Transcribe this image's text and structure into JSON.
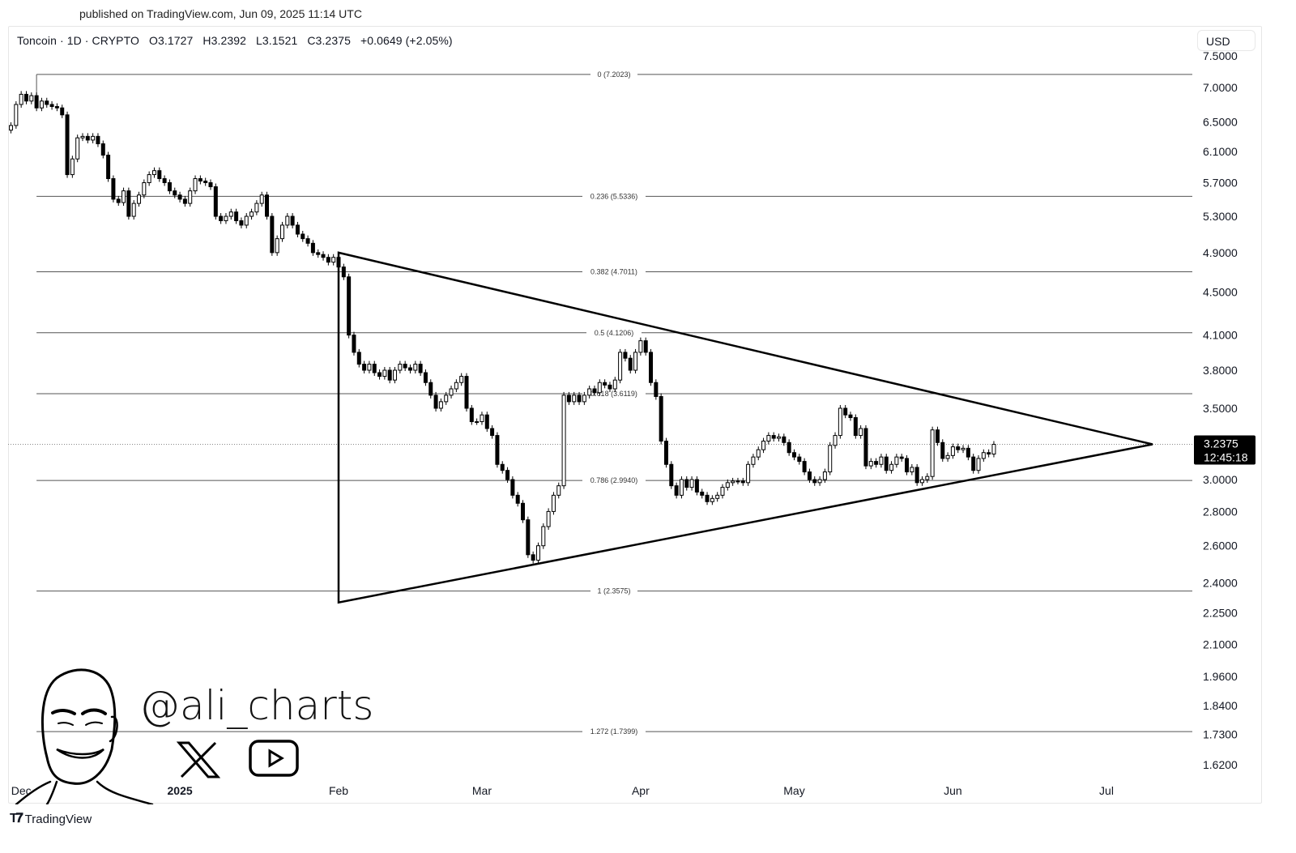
{
  "header": {
    "published": "published on TradingView.com, Jun 09, 2025 11:14 UTC"
  },
  "legend": {
    "symbol": "Toncoin · 1D · CRYPTO",
    "open": "O3.1727",
    "high": "H3.2392",
    "low": "L3.1521",
    "close": "C3.2375",
    "change": "+0.0649 (+2.05%)"
  },
  "currency_button": "USD",
  "price_tag": {
    "price": "3.2375",
    "countdown": "12:45:18"
  },
  "watermark": {
    "handle": "@ali_charts",
    "icons": [
      "avatar-illustration",
      "x-logo-icon",
      "youtube-icon"
    ]
  },
  "footer": {
    "brand": "TradingView"
  },
  "colors": {
    "bull": "#ffffff",
    "bear": "#000000",
    "line": "#000000",
    "text": "#131722"
  },
  "chart_data": {
    "type": "candlestick",
    "title": "",
    "y_scale": "log",
    "ylim": [
      1.55,
      7.6
    ],
    "grid": false,
    "x_ticks": [
      {
        "label": "Dec",
        "date": "2024-12-01",
        "bold": false
      },
      {
        "label": "2025",
        "date": "2025-01-01",
        "bold": true
      },
      {
        "label": "Feb",
        "date": "2025-02-01",
        "bold": false
      },
      {
        "label": "Mar",
        "date": "2025-03-01",
        "bold": false
      },
      {
        "label": "Apr",
        "date": "2025-04-01",
        "bold": false
      },
      {
        "label": "May",
        "date": "2025-05-01",
        "bold": false
      },
      {
        "label": "Jun",
        "date": "2025-06-01",
        "bold": false
      },
      {
        "label": "Jul",
        "date": "2025-07-01",
        "bold": false
      }
    ],
    "y_ticks": [
      "7.5000",
      "7.0000",
      "6.5000",
      "6.1000",
      "5.7000",
      "5.3000",
      "4.9000",
      "4.5000",
      "4.1000",
      "3.8000",
      "3.5000",
      "3.0000",
      "2.8000",
      "2.6000",
      "2.4000",
      "2.2500",
      "2.1000",
      "1.9600",
      "1.8400",
      "1.7300",
      "1.6200"
    ],
    "candles": {
      "start": "2024-11-29",
      "close": [
        6.45,
        6.75,
        6.9,
        6.8,
        6.88,
        6.7,
        6.8,
        6.75,
        6.72,
        6.7,
        6.6,
        5.8,
        6.0,
        6.28,
        6.3,
        6.25,
        6.3,
        6.2,
        6.05,
        5.75,
        5.5,
        5.46,
        5.6,
        5.3,
        5.45,
        5.55,
        5.7,
        5.8,
        5.85,
        5.75,
        5.7,
        5.6,
        5.55,
        5.5,
        5.45,
        5.6,
        5.75,
        5.72,
        5.7,
        5.65,
        5.3,
        5.25,
        5.3,
        5.35,
        5.25,
        5.2,
        5.3,
        5.35,
        5.45,
        5.55,
        5.3,
        4.9,
        5.05,
        5.2,
        5.3,
        5.2,
        5.1,
        5.05,
        5.0,
        4.9,
        4.88,
        4.85,
        4.8,
        4.85,
        4.75,
        4.65,
        4.1,
        3.95,
        3.85,
        3.8,
        3.85,
        3.78,
        3.75,
        3.8,
        3.72,
        3.8,
        3.85,
        3.82,
        3.8,
        3.85,
        3.78,
        3.7,
        3.6,
        3.5,
        3.55,
        3.6,
        3.65,
        3.7,
        3.75,
        3.5,
        3.4,
        3.4,
        3.45,
        3.35,
        3.3,
        3.1,
        3.06,
        3.0,
        2.9,
        2.85,
        2.75,
        2.55,
        2.52,
        2.6,
        2.71,
        2.8,
        2.9,
        2.96,
        3.6,
        3.55,
        3.6,
        3.55,
        3.6,
        3.65,
        3.62,
        3.7,
        3.68,
        3.65,
        3.72,
        3.95,
        3.9,
        3.8,
        3.95,
        4.05,
        3.95,
        3.7,
        3.59,
        3.26,
        3.1,
        2.96,
        2.9,
        3.0,
        2.95,
        3.0,
        2.92,
        2.9,
        2.86,
        2.88,
        2.9,
        2.95,
        2.98,
        2.99,
        2.99,
        2.98,
        3.1,
        3.15,
        3.2,
        3.26,
        3.3,
        3.28,
        3.29,
        3.25,
        3.18,
        3.15,
        3.12,
        3.05,
        3.0,
        2.98,
        3.0,
        3.05,
        3.23,
        3.3,
        3.5,
        3.45,
        3.43,
        3.3,
        3.35,
        3.09,
        3.12,
        3.1,
        3.15,
        3.06,
        3.1,
        3.15,
        3.14,
        3.05,
        3.08,
        2.98,
        3.0,
        3.02,
        3.34,
        3.25,
        3.14,
        3.16,
        3.22,
        3.2,
        3.21,
        3.15,
        3.06,
        3.14,
        3.18,
        3.17,
        3.2375
      ]
    },
    "fib_levels": [
      {
        "label": "0 (7.2023)",
        "price": 7.2023
      },
      {
        "label": "0.236 (5.5336)",
        "price": 5.5336
      },
      {
        "label": "0.382 (4.7011)",
        "price": 4.7011
      },
      {
        "label": "0.5 (4.1206)",
        "price": 4.1206
      },
      {
        "label": "0.618 (3.6119)",
        "price": 3.6119
      },
      {
        "label": "0.786 (2.9940)",
        "price": 2.994
      },
      {
        "label": "1 (2.3575)",
        "price": 2.3575
      },
      {
        "label": "1.272 (1.7399)",
        "price": 1.7399
      }
    ],
    "fib_start_date": "2024-12-04",
    "triangle": [
      {
        "date": "2025-02-01",
        "price": 4.9
      },
      {
        "date": "2025-02-01",
        "price": 2.3
      },
      {
        "date": "2025-07-10",
        "price": 3.2375
      }
    ],
    "last_price": 3.2375
  }
}
